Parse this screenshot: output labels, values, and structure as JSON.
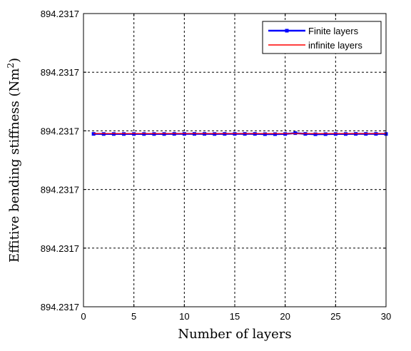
{
  "chart_data": {
    "type": "line",
    "xlabel": "Number of layers",
    "ylabel_main": "Effitive bending stiffness (Nm",
    "ylabel_sup": "2",
    "ylabel_close": ")",
    "xlim": [
      0,
      30
    ],
    "x_ticks": [
      0,
      5,
      10,
      15,
      20,
      25,
      30
    ],
    "x_tick_labels": [
      "0",
      "5",
      "10",
      "15",
      "20",
      "25",
      "30"
    ],
    "y_tick_labels": [
      "894.2317",
      "894.2317",
      "894.2317",
      "894.2317",
      "894.2317",
      "894.2317"
    ],
    "y_tick_fracs": [
      0,
      0.2,
      0.4,
      0.6,
      0.8,
      1.0
    ],
    "grid": true,
    "legend_position": "top-right",
    "series": [
      {
        "name": "Finite layers",
        "color": "#0000ff",
        "marker": "square",
        "x": [
          1,
          2,
          3,
          4,
          5,
          6,
          7,
          8,
          9,
          10,
          11,
          12,
          13,
          14,
          15,
          16,
          17,
          18,
          19,
          20,
          21,
          22,
          23,
          24,
          25,
          26,
          27,
          28,
          29,
          30
        ],
        "level": [
          0.5896,
          0.5893,
          0.5893,
          0.5893,
          0.5893,
          0.5893,
          0.5893,
          0.5893,
          0.5896,
          0.5896,
          0.5896,
          0.5896,
          0.5893,
          0.5896,
          0.5896,
          0.5896,
          0.5896,
          0.5888,
          0.5888,
          0.5893,
          0.5922,
          0.5896,
          0.5885,
          0.5888,
          0.5893,
          0.5893,
          0.5896,
          0.5896,
          0.5896,
          0.5893
        ]
      },
      {
        "name": "infinite layers",
        "color": "#ff0000",
        "marker": "none",
        "x": [
          1,
          30
        ],
        "level": [
          0.5907,
          0.5907
        ]
      }
    ]
  }
}
